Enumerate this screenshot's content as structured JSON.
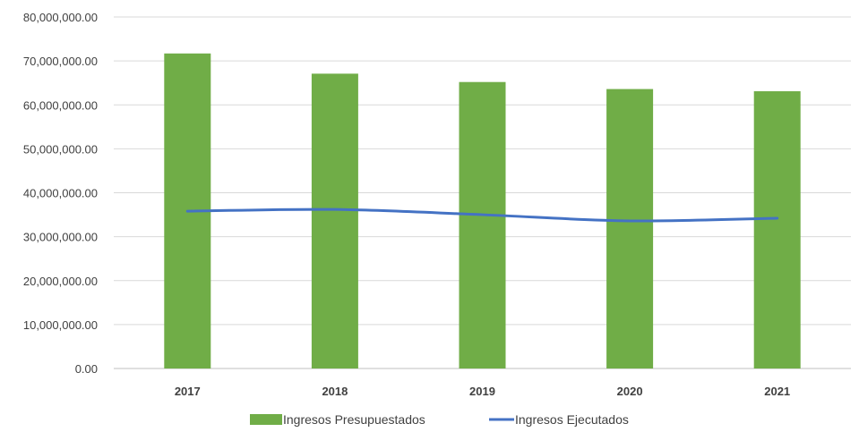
{
  "chart_data": {
    "type": "bar",
    "categories": [
      "2017",
      "2018",
      "2019",
      "2020",
      "2021"
    ],
    "series": [
      {
        "name": "Ingresos Presupuestados",
        "type": "bar",
        "color": "#70ad47",
        "values": [
          71700000,
          67100000,
          65200000,
          63600000,
          63100000
        ]
      },
      {
        "name": "Ingresos Ejecutados",
        "type": "line",
        "color": "#4472c4",
        "values": [
          35800000,
          36200000,
          35000000,
          33600000,
          34200000
        ]
      }
    ],
    "ylim": [
      0,
      80000000
    ],
    "yticks": [
      "0.00",
      "10,000,000.00",
      "20,000,000.00",
      "30,000,000.00",
      "40,000,000.00",
      "50,000,000.00",
      "60,000,000.00",
      "70,000,000.00",
      "80,000,000.00"
    ],
    "grid": true,
    "legend_position": "bottom",
    "title": "",
    "xlabel": "",
    "ylabel": ""
  }
}
